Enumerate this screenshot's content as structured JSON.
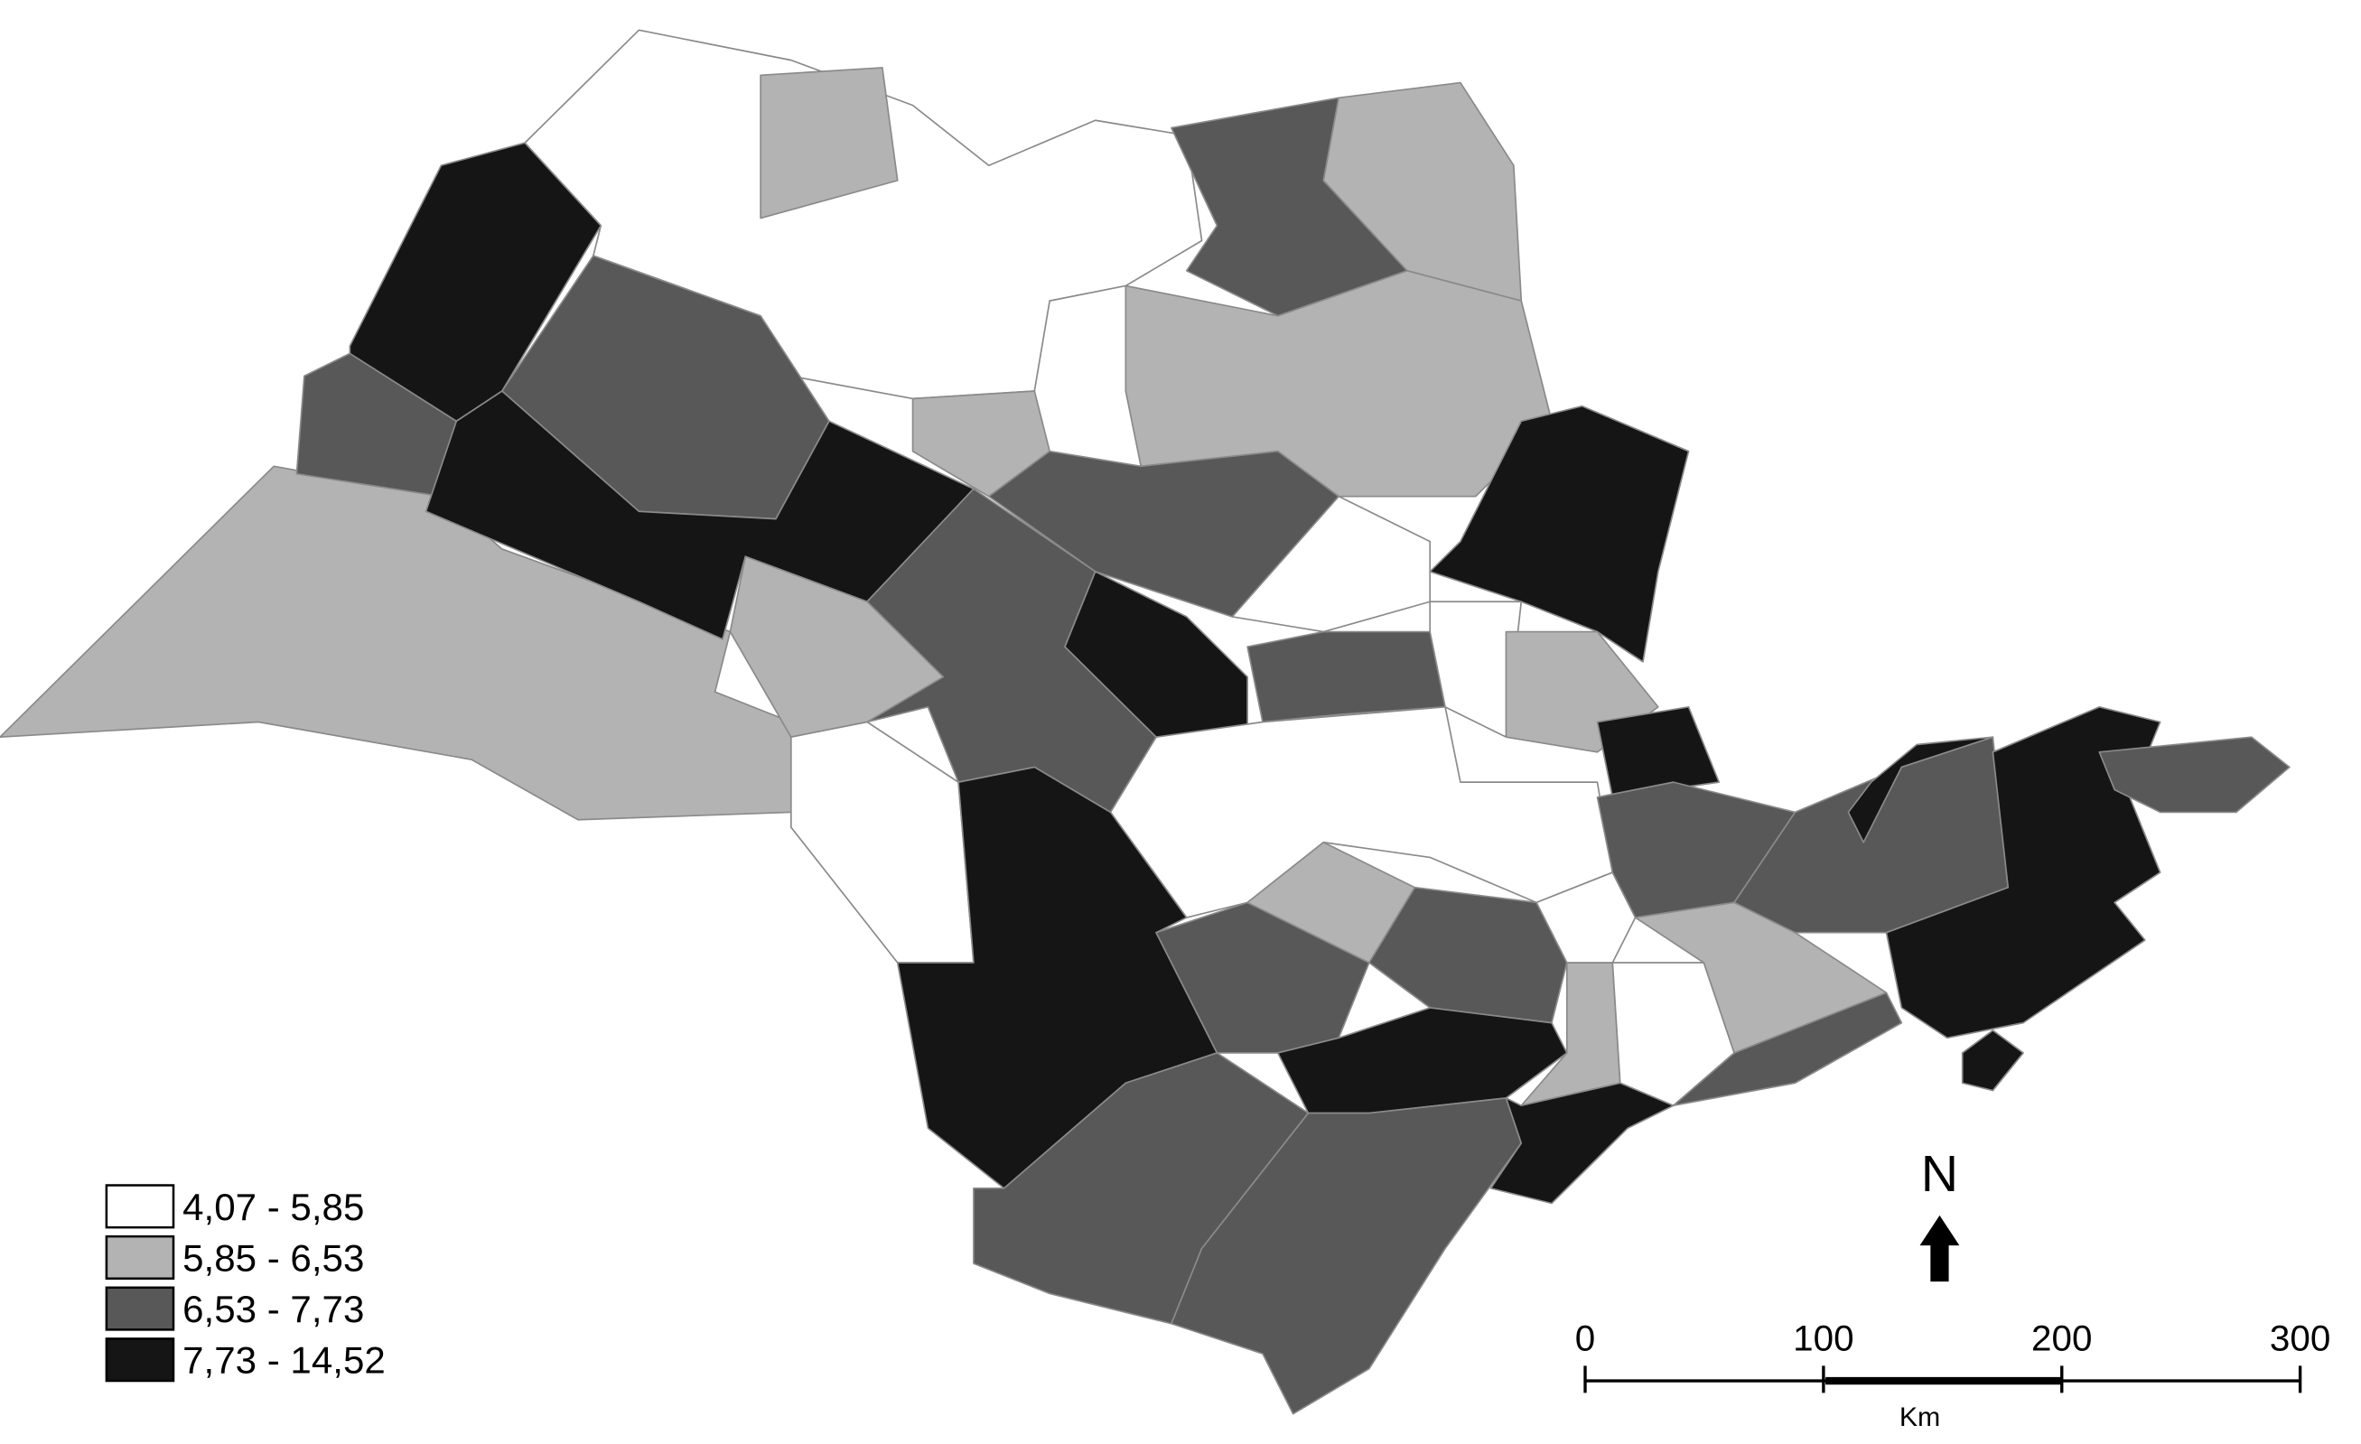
{
  "legend": {
    "items": [
      {
        "label": "4,07 - 5,85",
        "color": "#ffffff"
      },
      {
        "label": "5,85 - 6,53",
        "color": "#b3b3b3"
      },
      {
        "label": "6,53 - 7,73",
        "color": "#585858"
      },
      {
        "label": "7,73 - 14,52",
        "color": "#151515"
      }
    ]
  },
  "north_arrow": "N",
  "scale_bar": {
    "ticks": [
      "0",
      "100",
      "200",
      "300"
    ],
    "unit": "Km"
  }
}
